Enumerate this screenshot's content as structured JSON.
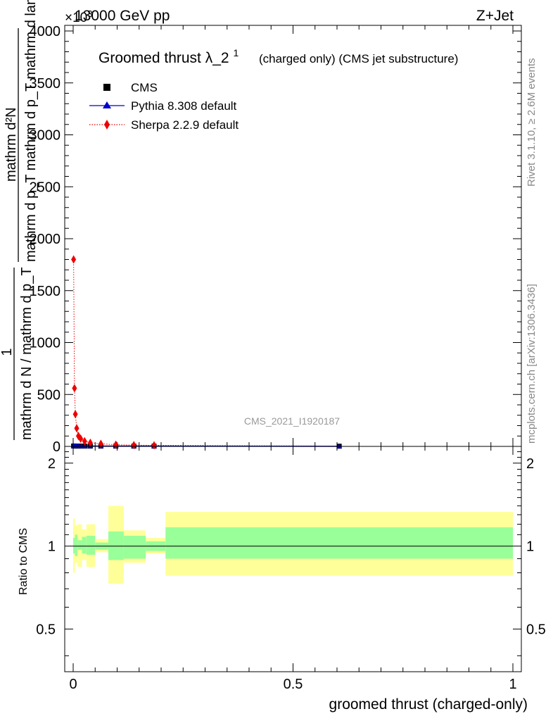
{
  "header": {
    "left": "13000 GeV pp",
    "right": "Z+Jet",
    "exponent": "×10",
    "exponent_power": "3"
  },
  "side": {
    "rivet": "Rivet 3.1.10, ≥ 2.6M events",
    "mcplots": "mcplots.cern.ch [arXiv:1306.3436]"
  },
  "colors": {
    "cms": "#000000",
    "pythia": "#0000cc",
    "sherpa": "#ee0000",
    "band_inner": "#99ff99",
    "band_outer": "#ffff99",
    "axis": "#000000",
    "watermark": "#999999"
  },
  "chart_data": [
    {
      "type": "scatter",
      "panel": "main",
      "title": "Groomed thrust",
      "title_symbol": "λ_2",
      "title_sup": "1",
      "title_note": "(charged only) (CMS jet substructure)",
      "ylabel_numerator": "mathrm d²N",
      "ylabel_denominator": "mathrm d p_T mathrm d p_T mathrm d lambda",
      "ylabel_prefix": "1",
      "ylabel_prefix_den": "mathrm d N / mathrm d p_T",
      "watermark": "CMS_2021_I1920187",
      "ylim": [
        0,
        4000
      ],
      "y_ticks": [
        0,
        500,
        1000,
        1500,
        2000,
        2500,
        3000,
        3500,
        4000
      ],
      "y_tick_labels": [
        "0",
        "500",
        "1000",
        "1500",
        "2000",
        "2500",
        "3000",
        "3500",
        "4000"
      ],
      "y_scale": 1000,
      "xlim": [
        0,
        1
      ],
      "legend_position": "top-left",
      "series": [
        {
          "name": "CMS",
          "marker": "square",
          "x": [
            0.001,
            0.004,
            0.008,
            0.013,
            0.019,
            0.027,
            0.039,
            0.063,
            0.097,
            0.138,
            0.184,
            0.605
          ],
          "y": [
            4,
            3,
            3,
            3,
            3,
            3,
            3,
            3,
            3,
            3,
            3,
            2
          ]
        },
        {
          "name": "Pythia 8.308 default",
          "marker": "triangle",
          "x": [
            0.001,
            0.004,
            0.008,
            0.013,
            0.019,
            0.027,
            0.039,
            0.063,
            0.097,
            0.138,
            0.184,
            0.605
          ],
          "y": [
            4,
            3,
            3,
            3,
            3,
            3,
            3,
            3,
            3,
            3,
            3,
            1
          ]
        },
        {
          "name": "Sherpa 2.2.9 default",
          "marker": "diamond",
          "x": [
            0.001,
            0.003,
            0.005,
            0.008,
            0.012,
            0.017,
            0.026,
            0.039,
            0.063,
            0.097,
            0.138,
            0.184
          ],
          "y": [
            1800,
            560,
            310,
            175,
            100,
            75,
            50,
            35,
            25,
            16,
            12,
            10
          ]
        }
      ]
    },
    {
      "type": "area",
      "panel": "ratio",
      "ylabel": "Ratio to CMS",
      "xlabel": "groomed thrust (charged-only)",
      "ylim": [
        0.35,
        2.3
      ],
      "y_ticks": [
        0.5,
        1,
        2
      ],
      "y_tick_labels": [
        "0.5",
        "1",
        "2"
      ],
      "x_ticks": [
        0,
        0.5,
        1
      ],
      "x_tick_labels": [
        "0",
        "0.5",
        "1"
      ],
      "xlim": [
        -0.02,
        1.02
      ],
      "reference_line": 1,
      "bins": [
        {
          "lo": 0.0,
          "hi": 0.004,
          "inner": [
            0.94,
            1.07
          ],
          "outer": [
            0.8,
            1.26
          ]
        },
        {
          "lo": 0.004,
          "hi": 0.01,
          "inner": [
            0.92,
            1.1
          ],
          "outer": [
            0.87,
            1.19
          ]
        },
        {
          "lo": 0.01,
          "hi": 0.02,
          "inner": [
            0.97,
            1.05
          ],
          "outer": [
            0.84,
            1.2
          ]
        },
        {
          "lo": 0.02,
          "hi": 0.03,
          "inner": [
            0.94,
            1.08
          ],
          "outer": [
            0.89,
            1.15
          ]
        },
        {
          "lo": 0.03,
          "hi": 0.05,
          "inner": [
            0.93,
            1.09
          ],
          "outer": [
            0.84,
            1.2
          ]
        },
        {
          "lo": 0.05,
          "hi": 0.08,
          "inner": [
            0.97,
            1.03
          ],
          "outer": [
            0.95,
            1.06
          ]
        },
        {
          "lo": 0.08,
          "hi": 0.115,
          "inner": [
            0.89,
            1.13
          ],
          "outer": [
            0.73,
            1.4
          ]
        },
        {
          "lo": 0.115,
          "hi": 0.165,
          "inner": [
            0.9,
            1.09
          ],
          "outer": [
            0.87,
            1.14
          ]
        },
        {
          "lo": 0.165,
          "hi": 0.21,
          "inner": [
            0.96,
            1.04
          ],
          "outer": [
            0.94,
            1.07
          ]
        },
        {
          "lo": 0.21,
          "hi": 1.0,
          "inner": [
            0.9,
            1.17
          ],
          "outer": [
            0.78,
            1.33
          ]
        }
      ]
    }
  ]
}
